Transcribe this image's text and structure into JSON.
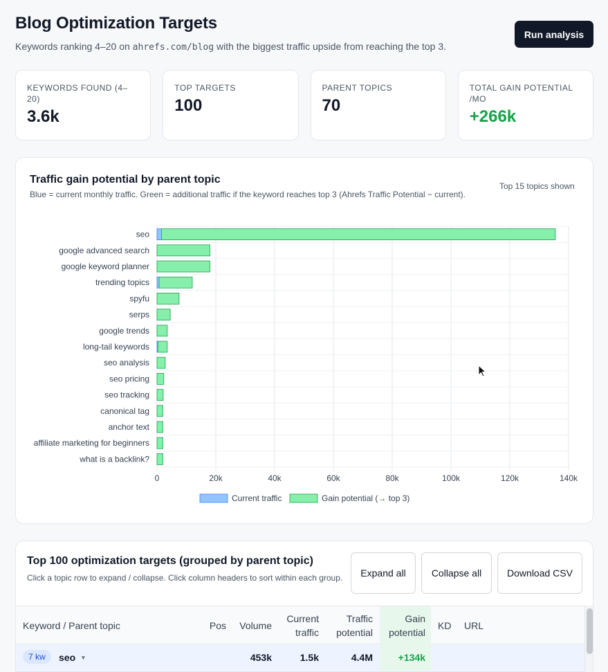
{
  "header": {
    "title": "Blog Optimization Targets",
    "subtitle_pre": "Keywords ranking 4–20 on",
    "subtitle_domain": "ahrefs.com/blog",
    "subtitle_post": "with the biggest traffic upside from reaching the top 3.",
    "run_button": "Run analysis"
  },
  "kpis": [
    {
      "label": "KEYWORDS FOUND (4–20)",
      "value": "3.6k"
    },
    {
      "label": "TOP TARGETS",
      "value": "100"
    },
    {
      "label": "PARENT TOPICS",
      "value": "70"
    },
    {
      "label": "TOTAL GAIN POTENTIAL /MO",
      "value": "+266k"
    }
  ],
  "chart_card": {
    "title": "Traffic gain potential by parent topic",
    "description": "Blue = current monthly traffic. Green = additional traffic if the keyword reaches top 3 (Ahrefs Traffic Potential − current).",
    "note": "Top 15 topics shown"
  },
  "chart_data": {
    "type": "bar",
    "orientation": "horizontal",
    "stacked": true,
    "categories": [
      "seo",
      "google advanced search",
      "google keyword planner",
      "trending topics",
      "spyfu",
      "serps",
      "google trends",
      "long-tail keywords",
      "seo analysis",
      "seo pricing",
      "seo tracking",
      "canonical tag",
      "anchor text",
      "affiliate marketing for beginners",
      "what is a backlink?"
    ],
    "series": [
      {
        "name": "Current traffic",
        "color": "#93c5fd",
        "values": [
          1500,
          0,
          0,
          700,
          0,
          0,
          0,
          300,
          0,
          0,
          0,
          0,
          0,
          0,
          0
        ]
      },
      {
        "name": "Gain potential (→ top 3)",
        "color": "#86efac",
        "values": [
          134000,
          18000,
          18000,
          11300,
          7500,
          4500,
          3500,
          3200,
          2800,
          2300,
          2100,
          2000,
          2000,
          2000,
          2000
        ]
      }
    ],
    "xlim": [
      0,
      140000
    ],
    "xticks": [
      "0",
      "20k",
      "40k",
      "60k",
      "80k",
      "100k",
      "120k",
      "140k"
    ],
    "grid": true,
    "legend": "bottom"
  },
  "table_card": {
    "title": "Top 100 optimization targets (grouped by parent topic)",
    "description": "Click a topic row to expand / collapse. Click column headers to sort within each group.",
    "buttons": {
      "expand": "Expand all",
      "collapse": "Collapse all",
      "download": "Download CSV"
    },
    "columns": {
      "keyword": "Keyword / Parent topic",
      "pos": "Pos",
      "volume": "Volume",
      "current": "Current traffic",
      "potential": "Traffic potential",
      "gain": "Gain potential",
      "kd": "KD",
      "url": "URL"
    },
    "rows": [
      {
        "badge": "7 kw",
        "topic": "seo",
        "caret": "▾",
        "pos": "",
        "volume": "453k",
        "current": "1.5k",
        "potential": "4.4M",
        "gain": "+134k",
        "kd": "",
        "url": ""
      }
    ]
  }
}
